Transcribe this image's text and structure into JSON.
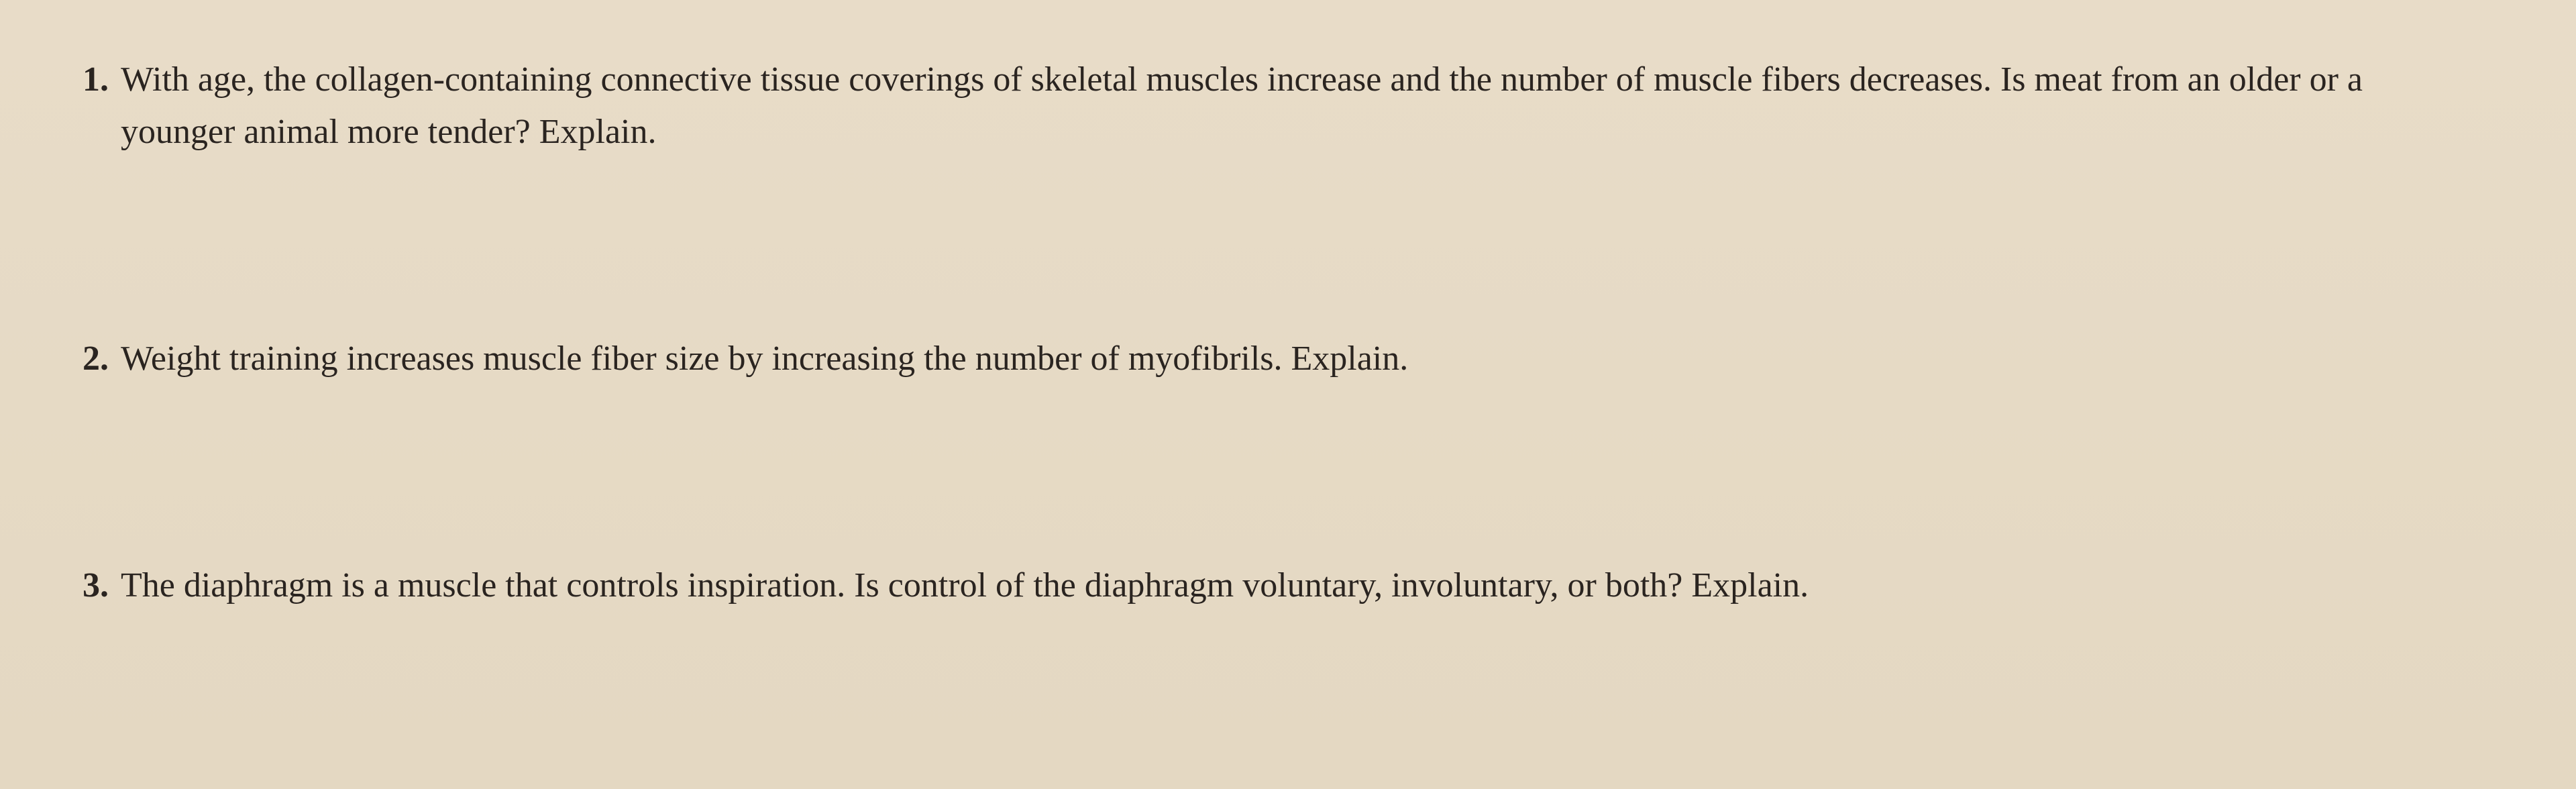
{
  "questions": [
    {
      "number": "1.",
      "text": "With age, the collagen-containing connective tissue coverings of skeletal muscles increase and the number of muscle fibers decreases. Is meat from an older or a younger animal more tender? Explain."
    },
    {
      "number": "2.",
      "text": "Weight training increases muscle fiber size by increasing the number of myofibrils. Explain."
    },
    {
      "number": "3.",
      "text": "The diaphragm is a muscle that controls inspiration. Is control of the diaphragm voluntary, involuntary, or both? Explain."
    }
  ],
  "styling": {
    "background_color": "#e6dac5",
    "text_color": "#2a2420",
    "font_family": "Georgia, Times New Roman, serif",
    "font_size_pt": 52,
    "number_font_weight": "bold",
    "line_height": 1.5
  }
}
